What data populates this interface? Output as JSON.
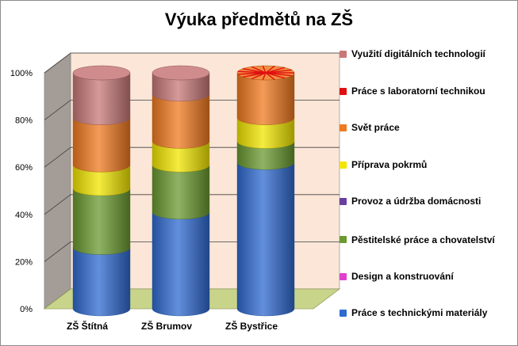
{
  "chart_data": {
    "type": "bar",
    "stacked": "percent",
    "title": "Výuka předmětů na ZŠ",
    "categories": [
      "ZŠ Štítná",
      "ZŠ Brumov",
      "ZŠ Bystřice"
    ],
    "y_ticks": [
      "0%",
      "20%",
      "40%",
      "60%",
      "80%",
      "100%"
    ],
    "ylim": [
      0,
      100
    ],
    "legend_position": "right",
    "series": [
      {
        "name": "Práce s technickými materiály",
        "color": "#2f6ad0",
        "values": [
          26,
          41,
          62
        ]
      },
      {
        "name": "Design a konstruování",
        "color": "#e040d0",
        "values": [
          0,
          0,
          0
        ]
      },
      {
        "name": "Pěstitelské práce a chovatelství",
        "color": "#6a9a30",
        "values": [
          25,
          20,
          9
        ]
      },
      {
        "name": "Provoz a údržba domácnosti",
        "color": "#6a3fa0",
        "values": [
          0,
          0,
          0
        ]
      },
      {
        "name": "Příprava pokrmů",
        "color": "#f2e600",
        "values": [
          10,
          10,
          10
        ]
      },
      {
        "name": "Svět práce",
        "color": "#f07a20",
        "values": [
          20,
          20,
          19
        ]
      },
      {
        "name": "Práce s laboratorní technikou",
        "color": "#e01010",
        "values": [
          0,
          0,
          0
        ]
      },
      {
        "name": "Využití digitálních technologií",
        "color": "#c87878",
        "values": [
          19,
          9,
          0
        ]
      }
    ]
  }
}
